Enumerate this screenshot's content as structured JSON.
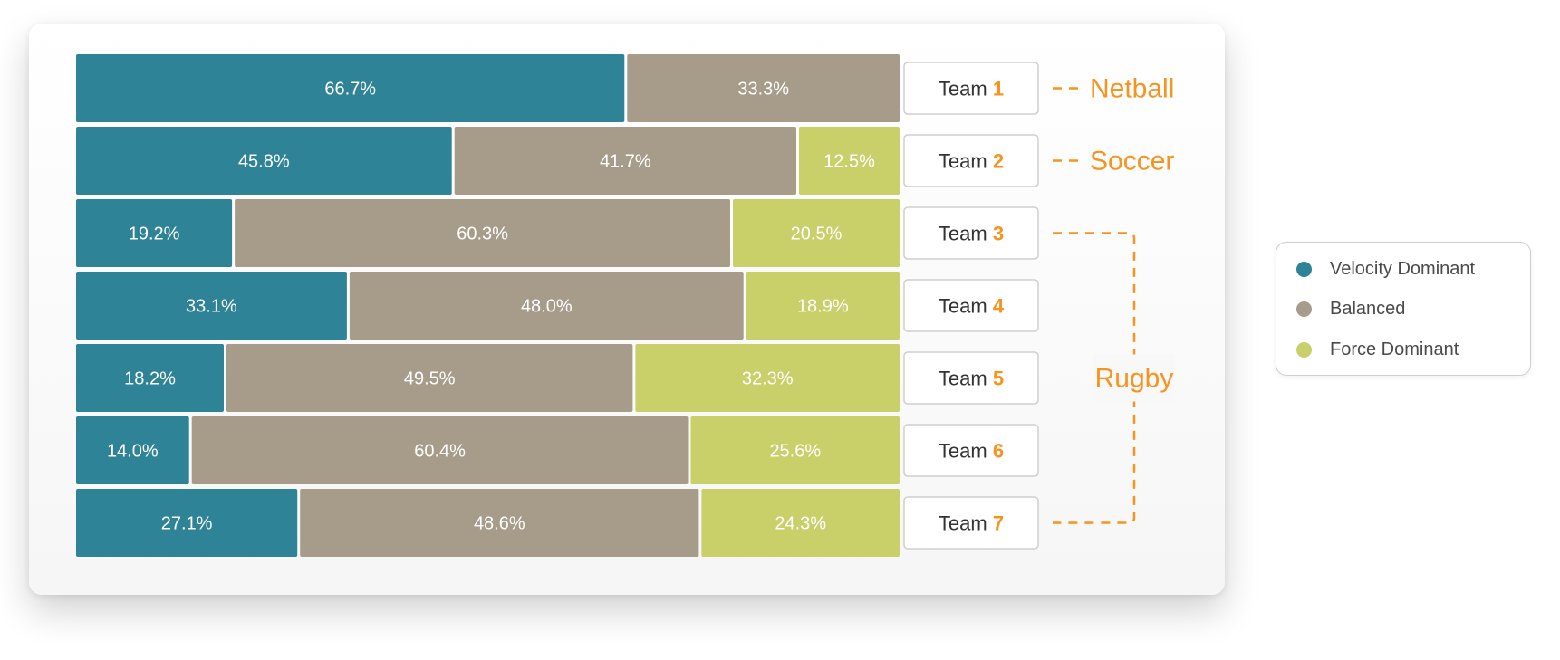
{
  "chart_data": {
    "type": "bar",
    "orientation": "horizontal",
    "stacked": true,
    "categories": [
      {
        "prefix": "Team",
        "number": "1"
      },
      {
        "prefix": "Team",
        "number": "2"
      },
      {
        "prefix": "Team",
        "number": "3"
      },
      {
        "prefix": "Team",
        "number": "4"
      },
      {
        "prefix": "Team",
        "number": "5"
      },
      {
        "prefix": "Team",
        "number": "6"
      },
      {
        "prefix": "Team",
        "number": "7"
      }
    ],
    "series": [
      {
        "name": "Velocity Dominant",
        "color": "#2f8396",
        "values": [
          66.7,
          45.8,
          19.2,
          33.1,
          18.2,
          14.0,
          27.1
        ],
        "labels": [
          "66.7%",
          "45.8%",
          "19.2%",
          "33.1%",
          "18.2%",
          "14.0%",
          "27.1%"
        ]
      },
      {
        "name": "Balanced",
        "color": "#a79b8a",
        "values": [
          33.3,
          41.7,
          60.3,
          48.0,
          49.5,
          60.4,
          48.6
        ],
        "labels": [
          "33.3%",
          "41.7%",
          "60.3%",
          "48.0%",
          "49.5%",
          "60.4%",
          "48.6%"
        ]
      },
      {
        "name": "Force Dominant",
        "color": "#c9cf69",
        "values": [
          0,
          12.5,
          20.5,
          18.9,
          32.3,
          25.6,
          24.3
        ],
        "labels": [
          "",
          "12.5%",
          "20.5%",
          "18.9%",
          "32.3%",
          "25.6%",
          "24.3%"
        ]
      }
    ],
    "xlim": [
      0,
      100
    ],
    "legend": "right",
    "grid": false,
    "groups": [
      {
        "label": "Netball",
        "teams": [
          1
        ]
      },
      {
        "label": "Soccer",
        "teams": [
          2
        ]
      },
      {
        "label": "Rugby",
        "teams": [
          3,
          4,
          5,
          6,
          7
        ]
      }
    ],
    "accent_color": "#f7931e"
  }
}
